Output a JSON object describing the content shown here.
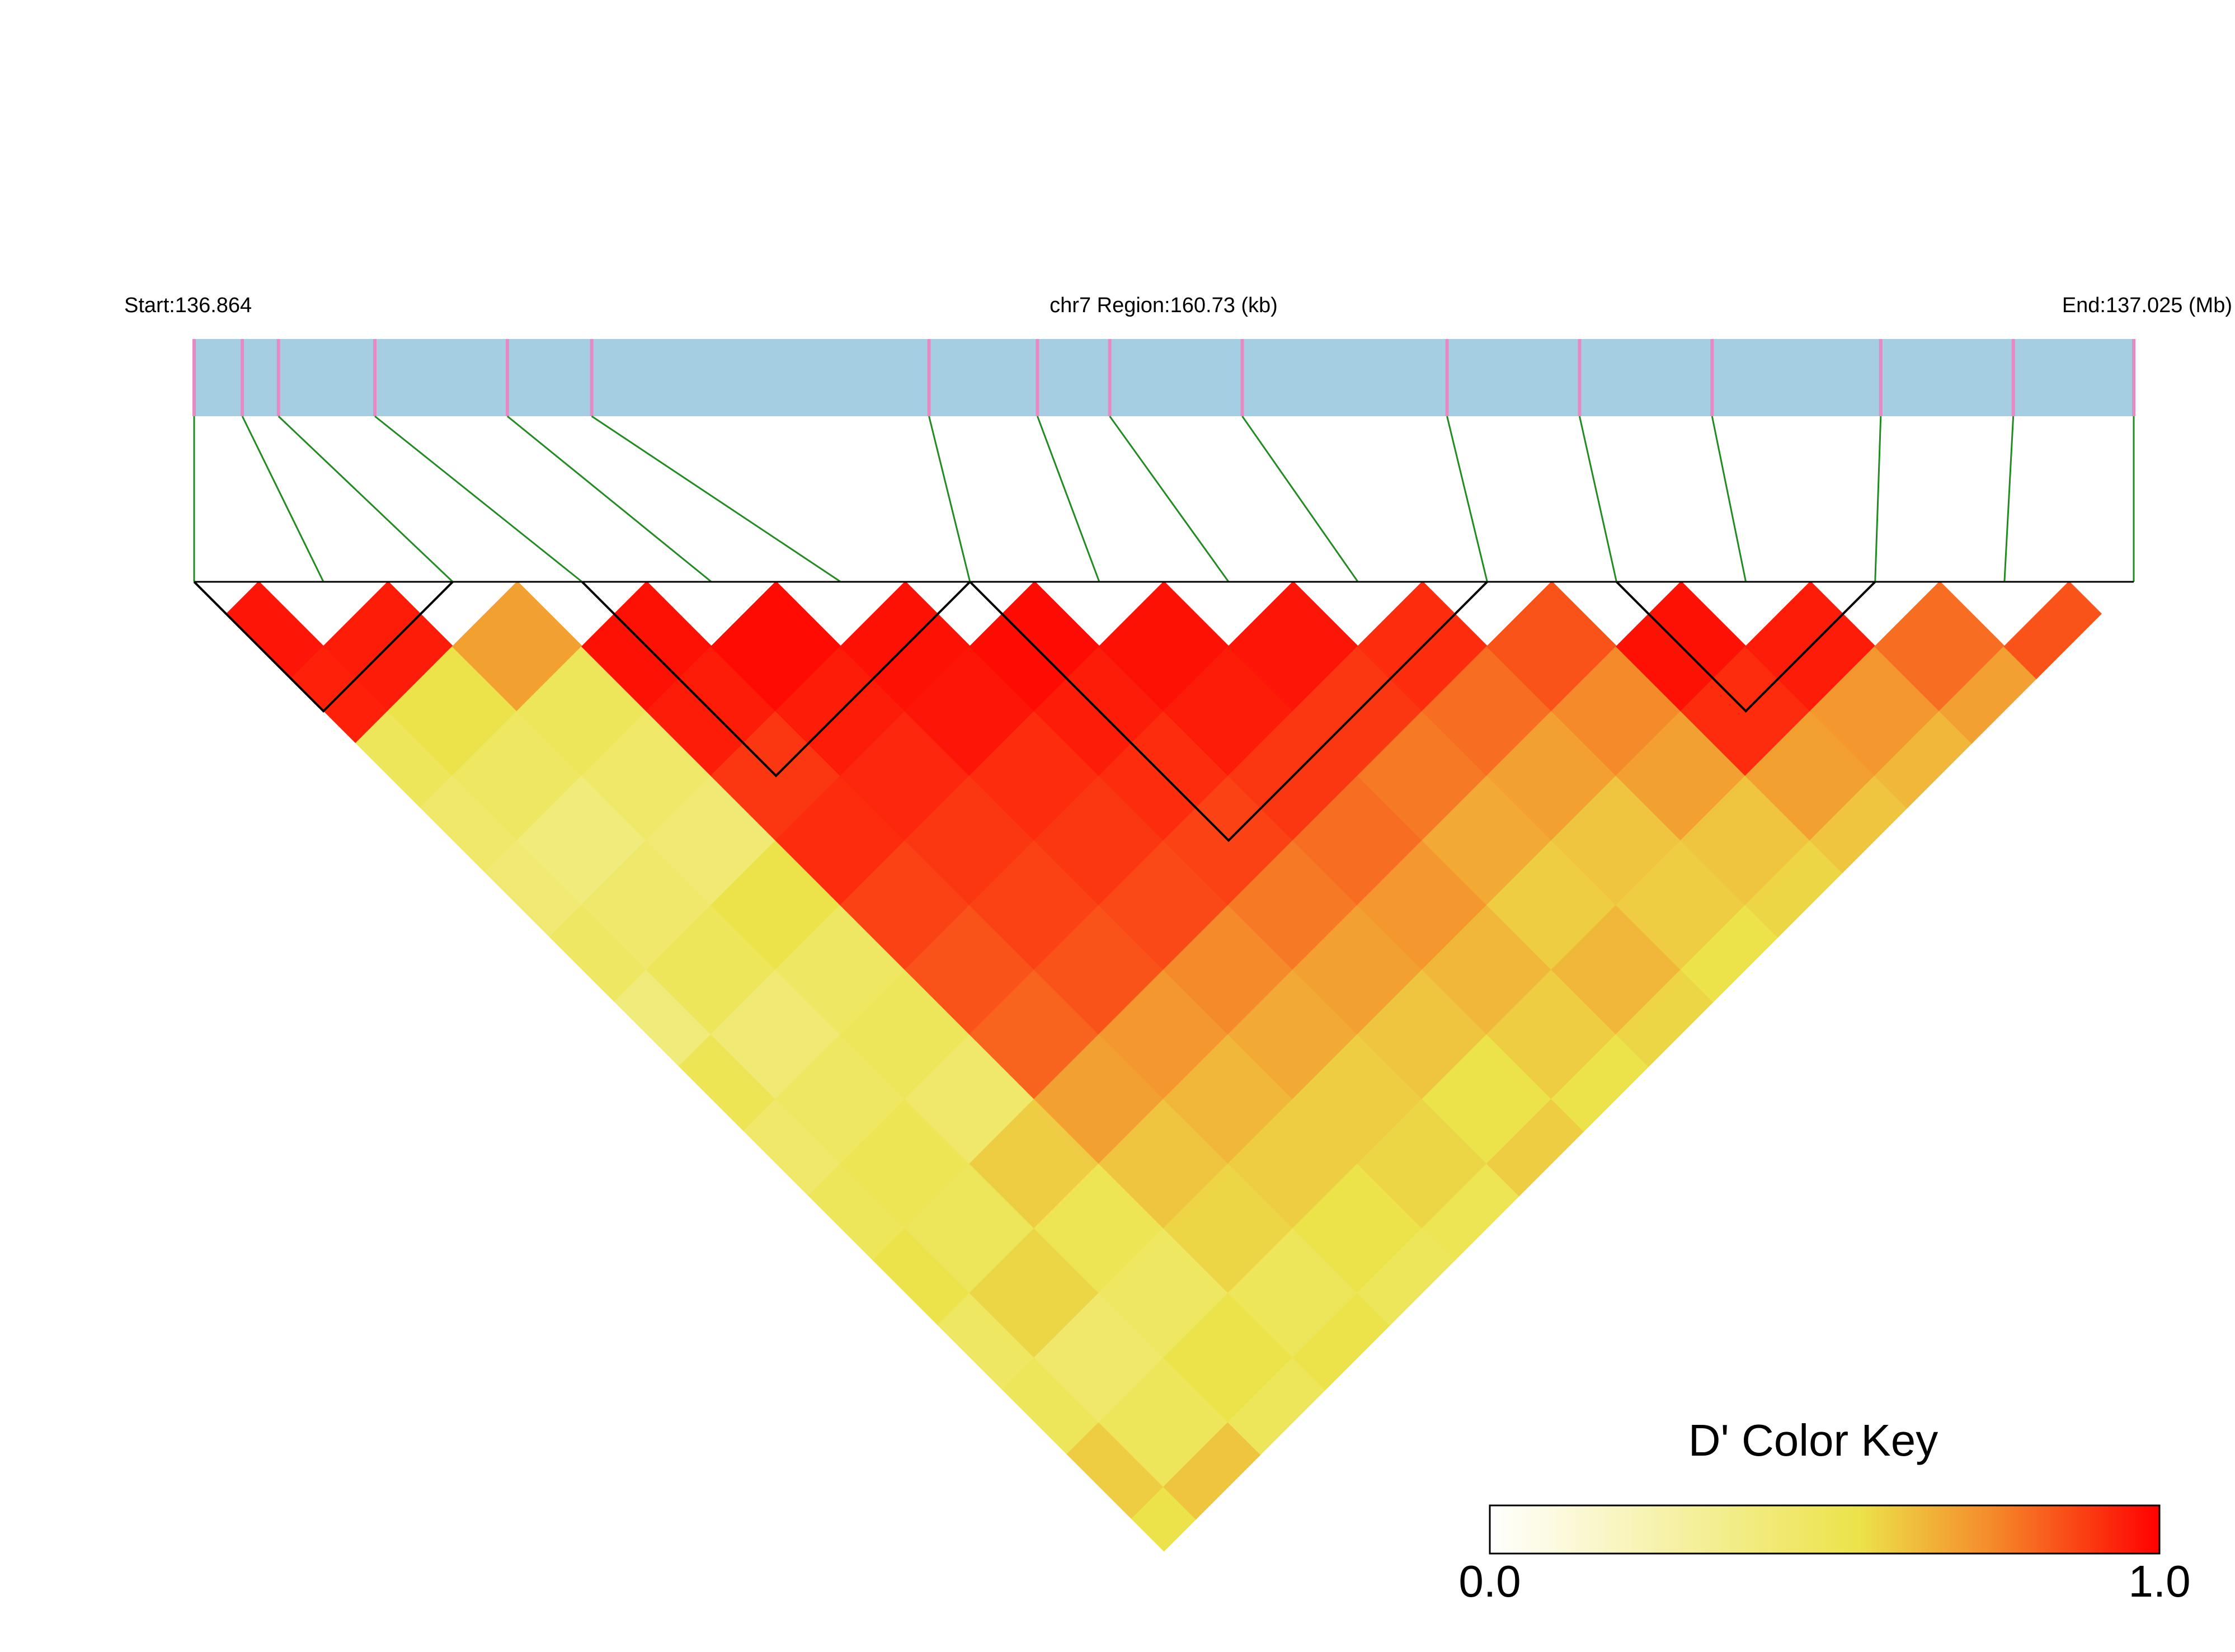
{
  "chart_data": {
    "type": "ld_heatmap",
    "title": "chr7 Region:160.73 (kb)",
    "start_label": "Start:136.864",
    "end_label": "End:137.025 (Mb)",
    "xlim": [
      136.864,
      137.025
    ],
    "snp_positions": [
      136.864,
      136.868,
      136.871,
      136.879,
      136.89,
      136.897,
      136.925,
      136.934,
      136.94,
      136.951,
      136.968,
      136.979,
      136.99,
      137.004,
      137.015,
      137.025
    ],
    "bar_color": "#a6cee3",
    "snp_color": "#e78ac3",
    "connector_color": "#228b22",
    "block_color": "#000000",
    "ld": [
      [
        0.96,
        0.94,
        0.5,
        0.45,
        0.42,
        0.48,
        0.4,
        0.52,
        0.45,
        0.5,
        0.55,
        0.48,
        0.5,
        0.6,
        0.55
      ],
      [
        0.95,
        0.55,
        0.48,
        0.4,
        0.45,
        0.5,
        0.42,
        0.48,
        0.52,
        0.5,
        0.58,
        0.45,
        0.5,
        0.62
      ],
      [
        0.7,
        0.5,
        0.46,
        0.42,
        0.55,
        0.48,
        0.5,
        0.45,
        0.6,
        0.52,
        0.48,
        0.55,
        0.5
      ],
      [
        0.97,
        0.95,
        0.9,
        0.92,
        0.88,
        0.85,
        0.82,
        0.7,
        0.62,
        0.58,
        0.5,
        0.55
      ],
      [
        0.98,
        0.95,
        0.93,
        0.9,
        0.88,
        0.85,
        0.72,
        0.65,
        0.6,
        0.55,
        0.5
      ],
      [
        0.97,
        0.96,
        0.92,
        0.9,
        0.87,
        0.75,
        0.68,
        0.6,
        0.58,
        0.52
      ],
      [
        0.98,
        0.95,
        0.92,
        0.88,
        0.78,
        0.7,
        0.62,
        0.55,
        0.6
      ],
      [
        0.97,
        0.95,
        0.9,
        0.8,
        0.72,
        0.65,
        0.6,
        0.55
      ],
      [
        0.96,
        0.9,
        0.78,
        0.68,
        0.6,
        0.65,
        0.58
      ],
      [
        0.92,
        0.8,
        0.7,
        0.62,
        0.6,
        0.55
      ],
      [
        0.85,
        0.75,
        0.7,
        0.62,
        0.58
      ],
      [
        0.97,
        0.92,
        0.7,
        0.62
      ],
      [
        0.95,
        0.72,
        0.65
      ],
      [
        0.8,
        0.7
      ],
      [
        0.85
      ]
    ],
    "blocks": [
      [
        0,
        2
      ],
      [
        3,
        6
      ],
      [
        6,
        10
      ],
      [
        11,
        13
      ]
    ],
    "colorscale": [
      [
        0,
        "#ffffff"
      ],
      [
        0.55,
        "#ece34a"
      ],
      [
        0.75,
        "#f58a2a"
      ],
      [
        1,
        "#ff0000"
      ]
    ],
    "colorkey": {
      "title": "D' Color Key",
      "lim": [
        0,
        1
      ],
      "ticks": [
        {
          "value": 0,
          "label": "0.0"
        },
        {
          "value": 1,
          "label": "1.0"
        }
      ]
    }
  }
}
